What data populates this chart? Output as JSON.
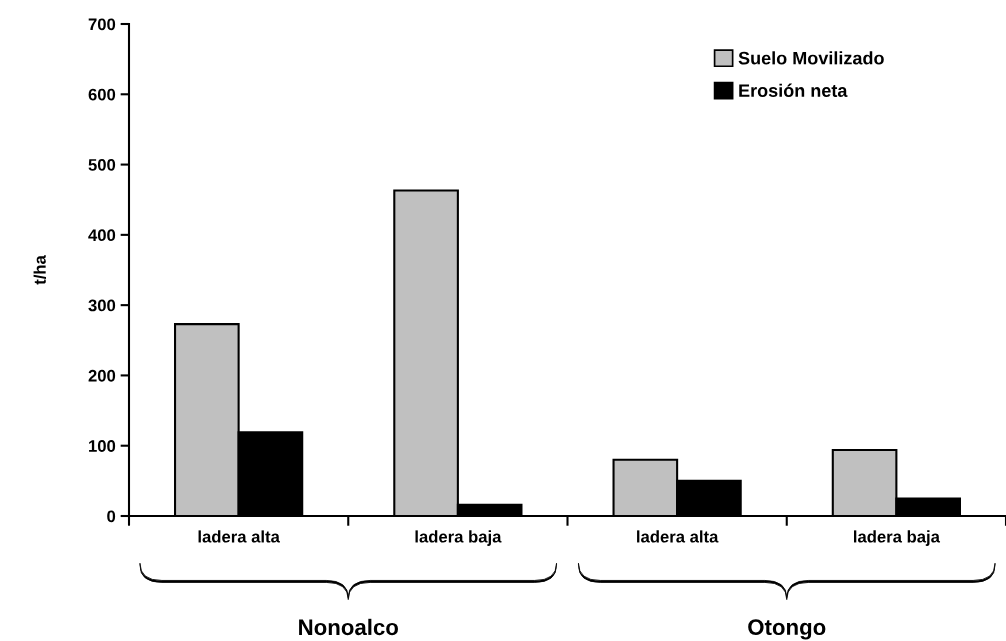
{
  "chart_data": {
    "type": "bar",
    "ylabel": "t/ha",
    "categories": [
      "ladera alta",
      "ladera baja",
      "ladera alta",
      "ladera baja"
    ],
    "series": [
      {
        "name": "Suelo Movilizado",
        "color": "#c0c0c0",
        "values": [
          273,
          463,
          80,
          94
        ]
      },
      {
        "name": "Erosión neta",
        "color": "#000000",
        "values": [
          119,
          16,
          50,
          25
        ]
      }
    ],
    "annotations": [
      "Nonoalco",
      "Otongo"
    ],
    "ylim": [
      0,
      700
    ],
    "yticks": [
      0,
      100,
      200,
      300,
      400,
      500,
      600,
      700
    ],
    "grid": false,
    "legend": "top right"
  }
}
